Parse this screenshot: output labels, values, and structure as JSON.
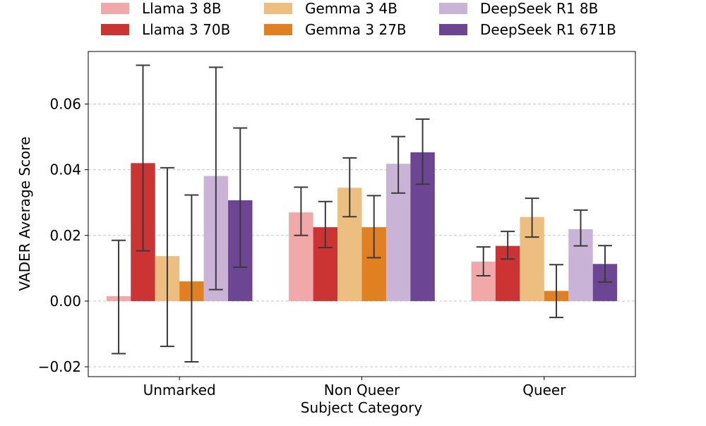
{
  "chart_data": {
    "type": "bar",
    "title": "",
    "xlabel": "Subject Category",
    "ylabel": "VADER Average Score",
    "categories": [
      "Unmarked",
      "Non Queer",
      "Queer"
    ],
    "ylim": [
      -0.023,
      0.076
    ],
    "yticks": [
      -0.02,
      0.0,
      0.02,
      0.04,
      0.06
    ],
    "ytick_labels": [
      "−0.02",
      "0.00",
      "0.02",
      "0.04",
      "0.06"
    ],
    "grid": "horizontal dashed",
    "legend_position": "top, outside plot, 3 columns",
    "series": [
      {
        "name": "Llama 3 8B",
        "color": "#f0a8a8",
        "values": [
          0.0015,
          0.027,
          0.012
        ],
        "err_low": [
          -0.016,
          0.02,
          0.0077
        ],
        "err_high": [
          0.0185,
          0.0347,
          0.0165
        ]
      },
      {
        "name": "Llama 3 70B",
        "color": "#cc3333",
        "values": [
          0.042,
          0.0225,
          0.0168
        ],
        "err_low": [
          0.0153,
          0.0163,
          0.0128
        ],
        "err_high": [
          0.0718,
          0.0303,
          0.0212
        ]
      },
      {
        "name": "Gemma 3 4B",
        "color": "#ecbf80",
        "values": [
          0.0137,
          0.0345,
          0.0256
        ],
        "err_low": [
          -0.0138,
          0.0257,
          0.0195
        ],
        "err_high": [
          0.0406,
          0.0436,
          0.0313
        ]
      },
      {
        "name": "Gemma 3 27B",
        "color": "#e08020",
        "values": [
          0.006,
          0.0225,
          0.0031
        ],
        "err_low": [
          -0.0185,
          0.0132,
          -0.005
        ],
        "err_high": [
          0.0323,
          0.0321,
          0.0111
        ]
      },
      {
        "name": "DeepSeek R1 8B",
        "color": "#c9b3d6",
        "values": [
          0.0381,
          0.0418,
          0.0219
        ],
        "err_low": [
          0.0035,
          0.0329,
          0.0168
        ],
        "err_high": [
          0.0712,
          0.0501,
          0.0277
        ]
      },
      {
        "name": "DeepSeek R1 671B",
        "color": "#6c4593",
        "values": [
          0.0307,
          0.0453,
          0.0113
        ],
        "err_low": [
          0.0103,
          0.0356,
          0.0058
        ],
        "err_high": [
          0.0527,
          0.0554,
          0.0169
        ]
      }
    ]
  }
}
